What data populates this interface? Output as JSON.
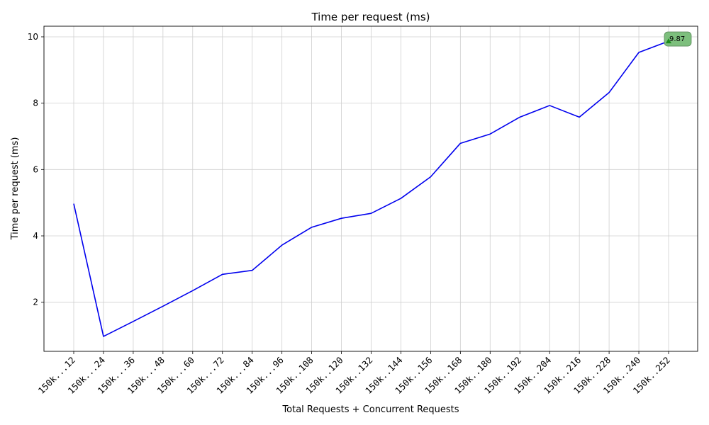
{
  "chart_data": {
    "type": "line",
    "title": "Time per request (ms)",
    "xlabel": "Total Requests + Concurrent Requests",
    "ylabel": "Time per request (ms)",
    "categories": [
      "150k...12",
      "150k...24",
      "150k...36",
      "150k...48",
      "150k...60",
      "150k...72",
      "150k...84",
      "150k...96",
      "150k..108",
      "150k..120",
      "150k..132",
      "150k..144",
      "150k..156",
      "150k..168",
      "150k..180",
      "150k..192",
      "150k..204",
      "150k..216",
      "150k..228",
      "150k..240",
      "150k..252"
    ],
    "series": [
      {
        "values": [
          4.97,
          0.97,
          1.42,
          1.88,
          2.35,
          2.84,
          2.96,
          3.72,
          4.26,
          4.53,
          4.68,
          5.13,
          5.78,
          6.79,
          7.07,
          7.58,
          7.93,
          7.58,
          8.32,
          9.53,
          9.87
        ],
        "color": "#0000ee"
      }
    ],
    "yticks": [
      2,
      4,
      6,
      8,
      10
    ],
    "ylim": [
      0.52,
      10.32
    ],
    "grid": true,
    "annotation": {
      "text": "9.87",
      "category": "150k..252",
      "value": 9.87,
      "marker_color": "#1a8a1a",
      "box_color": "#7dbf7d"
    }
  }
}
